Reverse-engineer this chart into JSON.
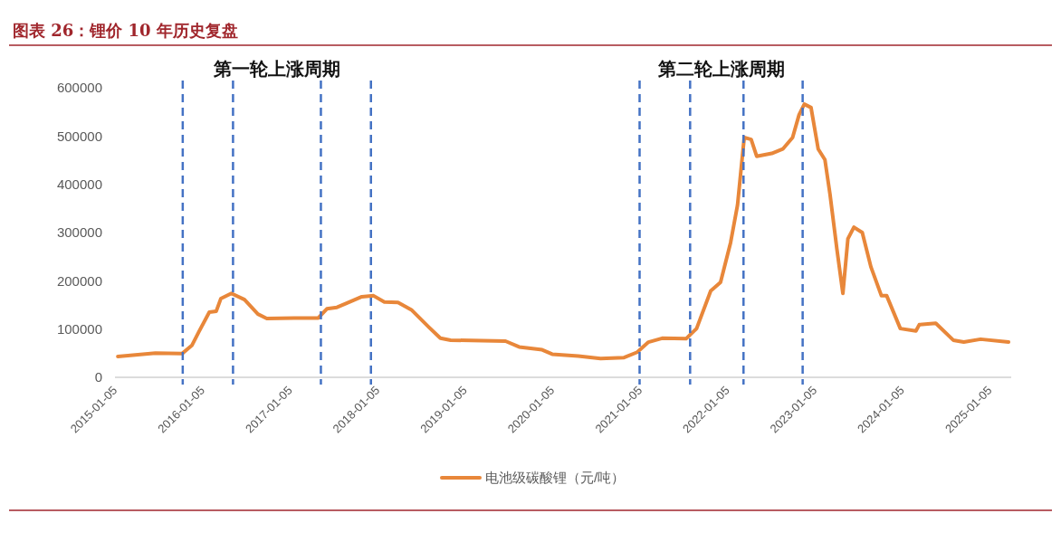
{
  "chart_data": {
    "type": "line",
    "title": "图表 26：锂价 10 年历史复盘",
    "x": [
      "2015-01-17",
      "2015-06-23",
      "2015-10-12",
      "2015-11-22",
      "2015-12-22",
      "2016-02-03",
      "2016-03-03",
      "2016-03-22",
      "2016-05-05",
      "2016-06-29",
      "2016-08-24",
      "2016-09-30",
      "2017-01-22",
      "2017-05-03",
      "2017-06-08",
      "2017-07-20",
      "2017-08-27",
      "2017-11-01",
      "2017-12-20",
      "2018-02-03",
      "2018-04-01",
      "2018-05-29",
      "2018-08-10",
      "2018-09-25",
      "2018-11-07",
      "2019-06-24",
      "2019-08-20",
      "2019-11-24",
      "2020-01-05",
      "2020-04-23",
      "2020-07-25",
      "2020-10-31",
      "2020-12-25",
      "2021-02-10",
      "2021-04-08",
      "2021-07-17",
      "2021-08-30",
      "2021-10-28",
      "2021-12-08",
      "2022-01-19",
      "2022-02-17",
      "2022-03-17",
      "2022-04-15",
      "2022-05-08",
      "2022-07-10",
      "2022-08-25",
      "2022-10-05",
      "2022-11-01",
      "2022-11-23",
      "2022-12-21",
      "2023-01-20",
      "2023-02-17",
      "2023-03-10",
      "2023-04-08",
      "2023-05-03",
      "2023-05-24",
      "2023-06-18",
      "2023-07-23",
      "2023-08-28",
      "2023-10-11",
      "2023-11-02",
      "2023-12-29",
      "2024-03-03",
      "2024-03-17",
      "2024-05-25",
      "2024-08-06",
      "2024-09-19",
      "2024-11-28",
      "2025-03-25"
    ],
    "series": [
      {
        "name": "电池级碳酸锂（元/吨）",
        "color": "#e8873a",
        "values": [
          43000,
          50000,
          49000,
          66000,
          95000,
          135000,
          137000,
          163000,
          174000,
          161000,
          131000,
          122000,
          123000,
          123000,
          142000,
          145000,
          153000,
          167000,
          169000,
          156000,
          155000,
          139000,
          103000,
          81000,
          77000,
          75000,
          63000,
          57000,
          48000,
          44000,
          39000,
          41000,
          52000,
          73000,
          81000,
          80000,
          101000,
          179000,
          197000,
          279000,
          357000,
          497000,
          493000,
          458000,
          464000,
          473000,
          497000,
          544000,
          566000,
          559000,
          473000,
          451000,
          380000,
          266000,
          174000,
          287000,
          311000,
          300000,
          229000,
          169000,
          169000,
          101000,
          96000,
          109000,
          112000,
          77000,
          73000,
          79000,
          73000
        ]
      }
    ],
    "xlim": [
      "2015-01-05",
      "2025-04-05"
    ],
    "xticks": [
      {
        "value": "2015-01-05",
        "label": "2015-01-05"
      },
      {
        "value": "2016-01-05",
        "label": "2016-01-05"
      },
      {
        "value": "2017-01-05",
        "label": "2017-01-05"
      },
      {
        "value": "2018-01-05",
        "label": "2018-01-05"
      },
      {
        "value": "2019-01-05",
        "label": "2019-01-05"
      },
      {
        "value": "2020-01-05",
        "label": "2020-01-05"
      },
      {
        "value": "2021-01-05",
        "label": "2021-01-05"
      },
      {
        "value": "2022-01-05",
        "label": "2022-01-05"
      },
      {
        "value": "2023-01-05",
        "label": "2023-01-05"
      },
      {
        "value": "2024-01-05",
        "label": "2024-01-05"
      },
      {
        "value": "2025-01-05",
        "label": "2025-01-05"
      }
    ],
    "ylim": [
      0,
      600000
    ],
    "yticks": [
      0,
      100000,
      200000,
      300000,
      400000,
      500000,
      600000
    ],
    "ref_lines": [
      {
        "axis": "x",
        "value": "2015-10-15",
        "color": "#4472c4",
        "line_style": "dashed"
      },
      {
        "axis": "x",
        "value": "2016-05-12",
        "color": "#4472c4",
        "line_style": "dashed"
      },
      {
        "axis": "x",
        "value": "2017-05-14",
        "color": "#4472c4",
        "line_style": "dashed"
      },
      {
        "axis": "x",
        "value": "2017-12-09",
        "color": "#4472c4",
        "line_style": "dashed"
      },
      {
        "axis": "x",
        "value": "2021-01-04",
        "color": "#4472c4",
        "line_style": "dashed"
      },
      {
        "axis": "x",
        "value": "2021-08-03",
        "color": "#4472c4",
        "line_style": "dashed"
      },
      {
        "axis": "x",
        "value": "2022-03-14",
        "color": "#4472c4",
        "line_style": "dashed"
      },
      {
        "axis": "x",
        "value": "2022-11-16",
        "color": "#4472c4",
        "line_style": "dashed"
      }
    ],
    "annotations": [
      "第一轮上涨周期",
      "第二轮上涨周期"
    ],
    "grid": false,
    "legend": "bottom",
    "line_style": "solid",
    "marker": "none"
  }
}
